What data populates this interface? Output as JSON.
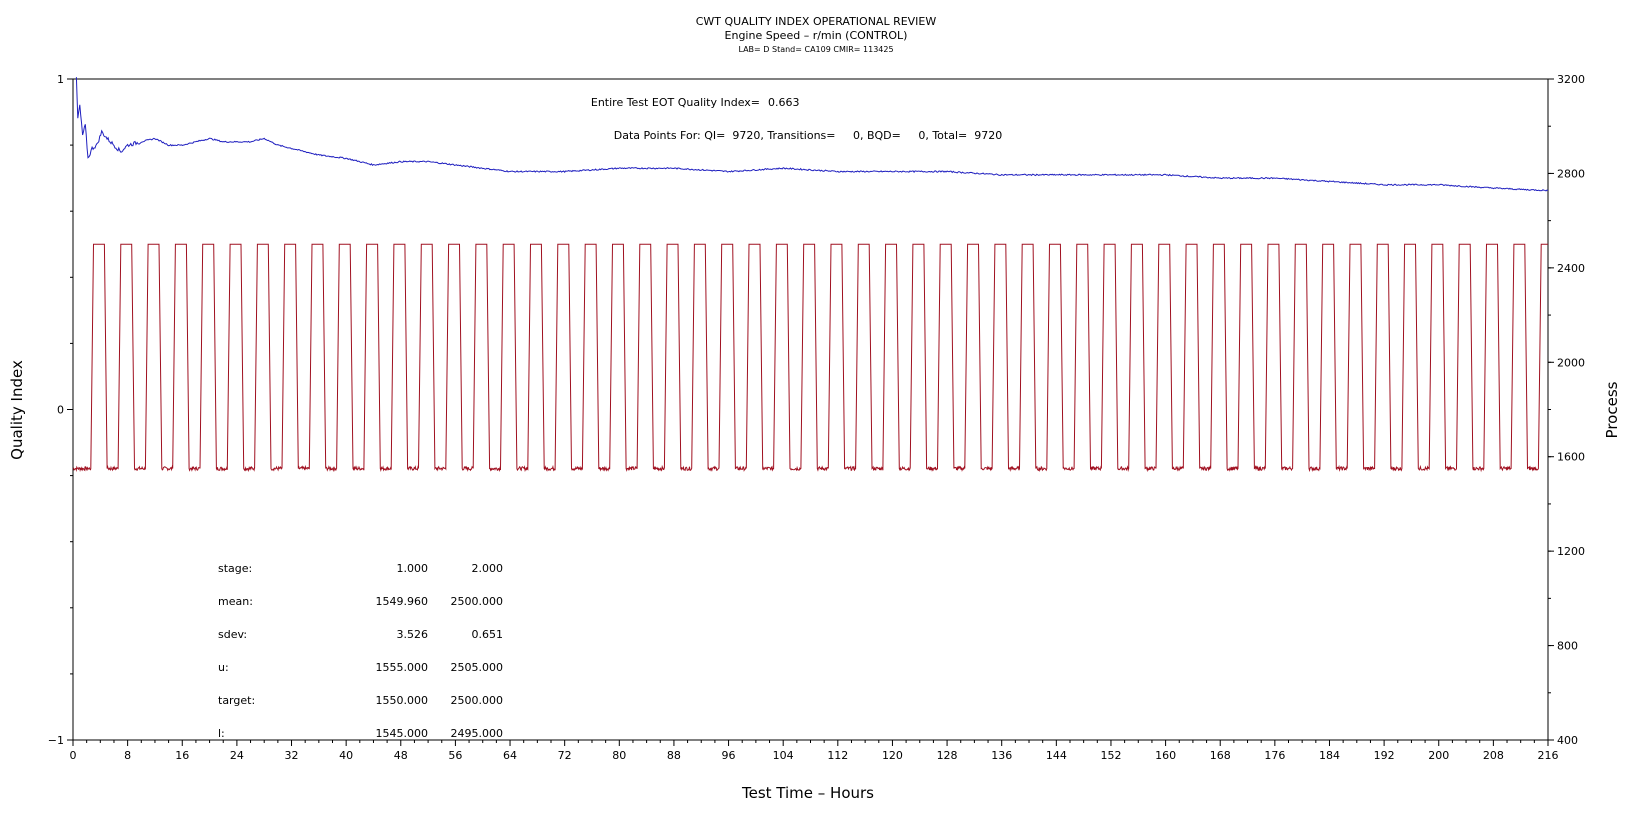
{
  "colors": {
    "quality_index": "#1f1fbf",
    "process": "#a01020",
    "axes": "#000000"
  },
  "chart_data": {
    "type": "line",
    "title": "CWT QUALITY INDEX OPERATIONAL REVIEW",
    "subtitle": "Engine Speed – r/min (CONTROL)",
    "subtitle2": "LAB= D Stand= CA109 CMIR= 113425",
    "xlabel": "Test Time – Hours",
    "ylabel_left": "Quality Index",
    "ylabel_right": "Process",
    "xlim": [
      0,
      216
    ],
    "ylim_left": [
      -1,
      1
    ],
    "ylim_right": [
      400,
      3200
    ],
    "x_ticks": [
      "0",
      "8",
      "16",
      "24",
      "32",
      "40",
      "48",
      "56",
      "64",
      "72",
      "80",
      "88",
      "96",
      "104",
      "112",
      "120",
      "128",
      "136",
      "144",
      "152",
      "160",
      "168",
      "176",
      "184",
      "192",
      "200",
      "208",
      "216"
    ],
    "y_left_ticks": [
      "-1",
      "0",
      "1"
    ],
    "y_right_ticks": [
      "400",
      "800",
      "1200",
      "1600",
      "2000",
      "2400",
      "2800",
      "3200"
    ],
    "annotations": {
      "eot_label": "Entire Test EOT Quality Index=",
      "eot_value": "0.663",
      "points_text": "Data Points For: QI=  9720, Transitions=     0, BQD=     0, Total=  9720"
    },
    "series": [
      {
        "role": "quality_index",
        "axis": "left",
        "points": [
          [
            0.5,
            1.0
          ],
          [
            0.7,
            0.88
          ],
          [
            1.0,
            0.92
          ],
          [
            1.4,
            0.83
          ],
          [
            1.8,
            0.86
          ],
          [
            2.2,
            0.76
          ],
          [
            2.8,
            0.79
          ],
          [
            3.5,
            0.8
          ],
          [
            4.2,
            0.84
          ],
          [
            5.0,
            0.82
          ],
          [
            6.0,
            0.8
          ],
          [
            7.0,
            0.78
          ],
          [
            8.0,
            0.8
          ],
          [
            10,
            0.81
          ],
          [
            12,
            0.82
          ],
          [
            14,
            0.8
          ],
          [
            16,
            0.8
          ],
          [
            18,
            0.81
          ],
          [
            20,
            0.82
          ],
          [
            22,
            0.81
          ],
          [
            24,
            0.81
          ],
          [
            26,
            0.81
          ],
          [
            28,
            0.82
          ],
          [
            30,
            0.8
          ],
          [
            32,
            0.79
          ],
          [
            36,
            0.77
          ],
          [
            40,
            0.76
          ],
          [
            44,
            0.74
          ],
          [
            48,
            0.75
          ],
          [
            52,
            0.75
          ],
          [
            56,
            0.74
          ],
          [
            60,
            0.73
          ],
          [
            64,
            0.72
          ],
          [
            68,
            0.72
          ],
          [
            72,
            0.72
          ],
          [
            80,
            0.73
          ],
          [
            88,
            0.73
          ],
          [
            96,
            0.72
          ],
          [
            104,
            0.73
          ],
          [
            112,
            0.72
          ],
          [
            120,
            0.72
          ],
          [
            128,
            0.72
          ],
          [
            136,
            0.71
          ],
          [
            144,
            0.71
          ],
          [
            152,
            0.71
          ],
          [
            160,
            0.71
          ],
          [
            168,
            0.7
          ],
          [
            176,
            0.7
          ],
          [
            184,
            0.69
          ],
          [
            192,
            0.68
          ],
          [
            200,
            0.68
          ],
          [
            208,
            0.67
          ],
          [
            213,
            0.665
          ],
          [
            216,
            0.663
          ]
        ]
      },
      {
        "role": "process",
        "axis": "right",
        "low": 1550,
        "high": 2500,
        "start_high": 3,
        "period": 4,
        "high_duration": 1.6,
        "ramp": 0.4,
        "noise": 3.5
      }
    ],
    "stats": {
      "rows": [
        {
          "label": "stage:",
          "v1": "1.000",
          "v2": "2.000"
        },
        {
          "label": "mean:",
          "v1": "1549.960",
          "v2": "2500.000"
        },
        {
          "label": "sdev:",
          "v1": "3.526",
          "v2": "0.651"
        },
        {
          "label": "u:",
          "v1": "1555.000",
          "v2": "2505.000"
        },
        {
          "label": "target:",
          "v1": "1550.000",
          "v2": "2500.000"
        },
        {
          "label": "l:",
          "v1": "1545.000",
          "v2": "2495.000"
        }
      ]
    }
  }
}
